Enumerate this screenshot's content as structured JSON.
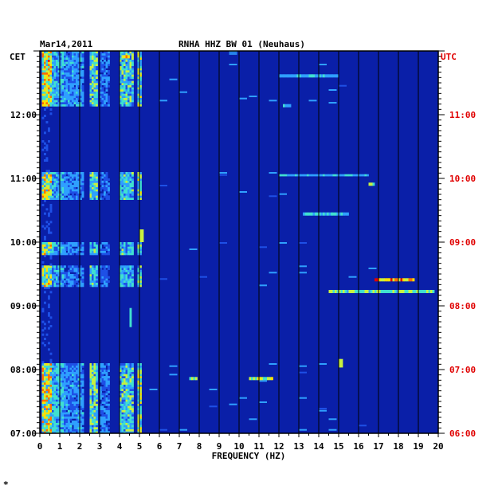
{
  "chart_data": {
    "type": "heatmap",
    "title": "RNHA HHZ BW 01 (Neuhaus)",
    "date_label": "Mar14,2011",
    "left_axis_title": "CET",
    "right_axis_title": "UTC",
    "xlabel": "FREQUENCY (HZ)",
    "xlim": [
      0,
      20
    ],
    "x_ticks": [
      "0",
      "1",
      "2",
      "3",
      "4",
      "5",
      "6",
      "7",
      "8",
      "9",
      "10",
      "11",
      "12",
      "13",
      "14",
      "15",
      "16",
      "17",
      "18",
      "19",
      "20"
    ],
    "ylim_minutes_cet": [
      420,
      780
    ],
    "left_ticks": [
      {
        "label": "12:00",
        "minutes": 720
      },
      {
        "label": "11:00",
        "minutes": 660
      },
      {
        "label": "10:00",
        "minutes": 600
      },
      {
        "label": "09:00",
        "minutes": 540
      },
      {
        "label": "08:00",
        "minutes": 480
      },
      {
        "label": "07:00",
        "minutes": 420
      }
    ],
    "right_ticks": [
      {
        "label": "11:00",
        "minutes": 720
      },
      {
        "label": "10:00",
        "minutes": 660
      },
      {
        "label": "09:00",
        "minutes": 600
      },
      {
        "label": "08:00",
        "minutes": 540
      },
      {
        "label": "07:00",
        "minutes": 480
      },
      {
        "label": "06:00",
        "minutes": 420
      }
    ],
    "colors": {
      "background": "#0a1fa8",
      "frame": "#000000",
      "utc_text": "#e00000"
    },
    "colormap": [
      "#0a1fa8",
      "#1e50e6",
      "#2fa0ff",
      "#40e0d0",
      "#c8f040",
      "#ffe000",
      "#ff7000",
      "#e00000"
    ],
    "bands": [
      {
        "f": [
          0.1,
          0.6
        ],
        "intensity": 0.75
      },
      {
        "f": [
          0.6,
          1.2
        ],
        "intensity": 0.4
      },
      {
        "f": [
          1.2,
          2.2
        ],
        "intensity": 0.3
      },
      {
        "f": [
          2.5,
          2.9
        ],
        "intensity": 0.5
      },
      {
        "f": [
          3.0,
          3.5
        ],
        "intensity": 0.25
      },
      {
        "f": [
          4.0,
          4.7
        ],
        "intensity": 0.45
      },
      {
        "f": [
          4.9,
          5.1
        ],
        "intensity": 0.6
      }
    ],
    "active_periods": [
      {
        "minutes": [
          727,
          778
        ],
        "level": 1.0
      },
      {
        "minutes": [
          640,
          665
        ],
        "level": 0.95
      },
      {
        "minutes": [
          588,
          599
        ],
        "level": 0.9
      },
      {
        "minutes": [
          558,
          576
        ],
        "level": 0.85
      },
      {
        "minutes": [
          420,
          484
        ],
        "level": 1.0
      }
    ],
    "hot_spots": [
      {
        "f": [
          4.1,
          4.5
        ],
        "minutes": [
          773,
          776
        ],
        "intensity": 0.9
      },
      {
        "f": [
          16.5,
          16.8
        ],
        "minutes": [
          653,
          656
        ],
        "intensity": 0.75
      },
      {
        "f": [
          16.8,
          18.8
        ],
        "minutes": [
          563,
          566
        ],
        "intensity": 1.0
      },
      {
        "f": [
          14.5,
          19.8
        ],
        "minutes": [
          552,
          555
        ],
        "intensity": 0.6
      },
      {
        "f": [
          10.5,
          11.7
        ],
        "minutes": [
          470,
          473
        ],
        "intensity": 0.65
      },
      {
        "f": [
          7.5,
          7.9
        ],
        "minutes": [
          470,
          473
        ],
        "intensity": 0.55
      },
      {
        "f": [
          15.0,
          15.2
        ],
        "minutes": [
          482,
          490
        ],
        "intensity": 0.6
      },
      {
        "f": [
          12.2,
          12.6
        ],
        "minutes": [
          727,
          730
        ],
        "intensity": 0.5
      },
      {
        "f": [
          13.2,
          15.5
        ],
        "minutes": [
          625,
          628
        ],
        "intensity": 0.45
      },
      {
        "f": [
          12.0,
          16.5
        ],
        "minutes": [
          662,
          664
        ],
        "intensity": 0.4
      },
      {
        "f": [
          12.0,
          15.0
        ],
        "minutes": [
          755,
          758
        ],
        "intensity": 0.4
      },
      {
        "f": [
          5.0,
          5.2
        ],
        "minutes": [
          600,
          612
        ],
        "intensity": 0.8
      },
      {
        "f": [
          4.5,
          4.6
        ],
        "minutes": [
          520,
          538
        ],
        "intensity": 0.75
      }
    ]
  }
}
